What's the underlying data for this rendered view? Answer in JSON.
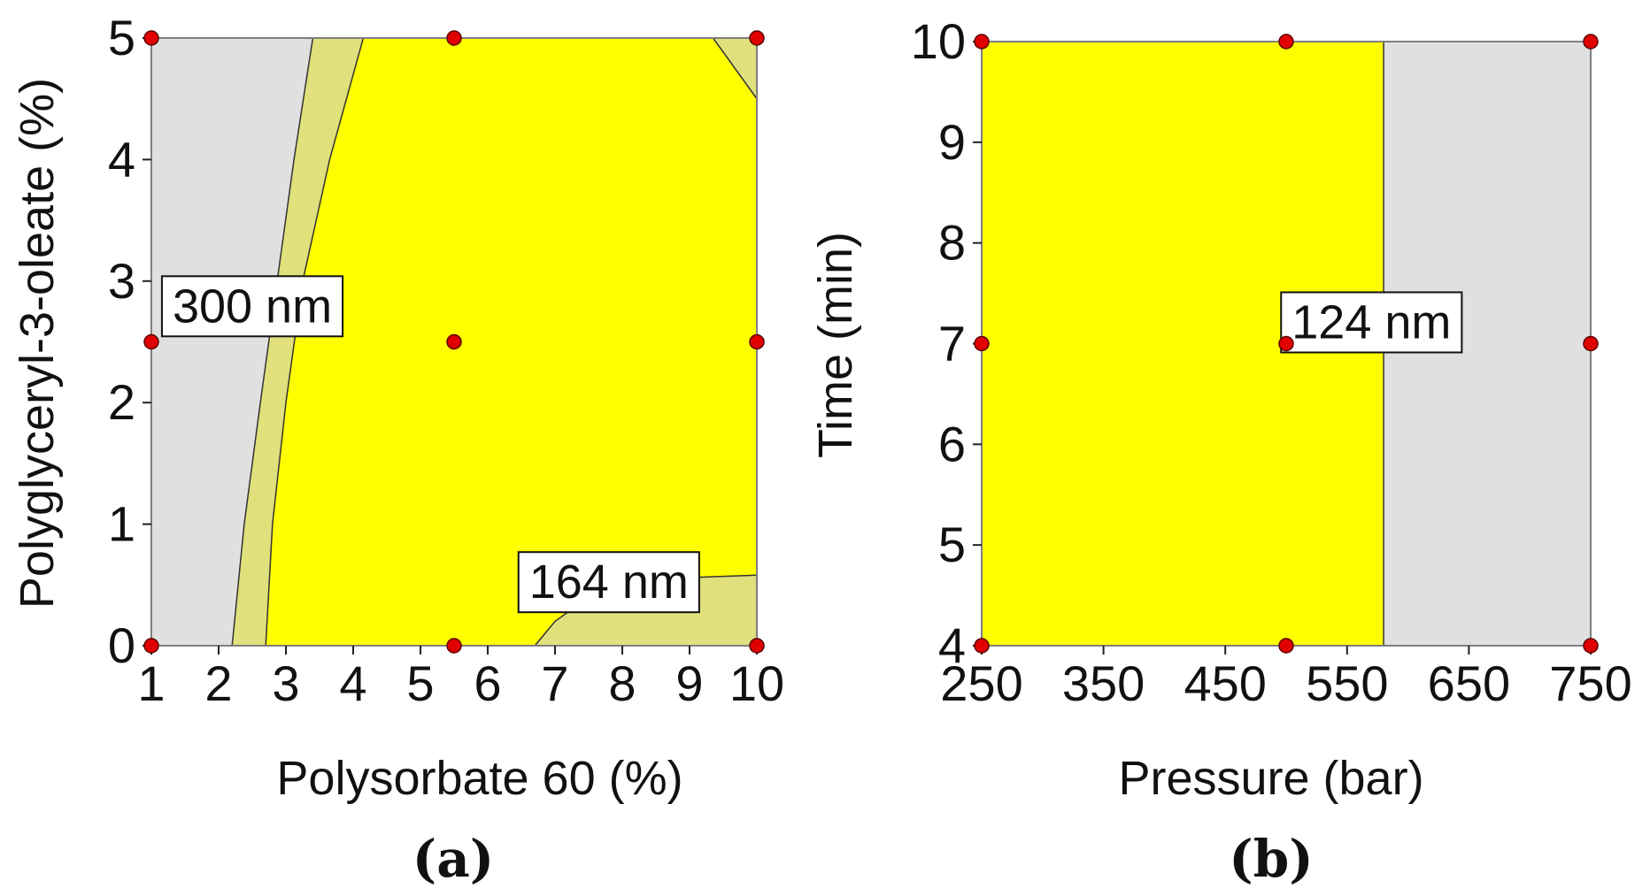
{
  "figure": {
    "colors": {
      "low_region": "#ffff00",
      "mid_region": "#e0e07c",
      "high_region": "#e0e0e0",
      "design_point": "#e00000",
      "frame": "#7f7f7f"
    }
  },
  "chart_data": [
    {
      "type": "contour",
      "panel": "(a)",
      "xlabel": "Polysorbate 60 (%)",
      "ylabel": "Polyglyceryl-3-oleate (%)",
      "xlim": [
        1,
        10
      ],
      "ylim": [
        0,
        5
      ],
      "xticks": [
        "1",
        "2",
        "3",
        "4",
        "5",
        "6",
        "7",
        "8",
        "9",
        "10"
      ],
      "yticks": [
        "0",
        "1",
        "2",
        "3",
        "4",
        "5"
      ],
      "grid": false,
      "contour_labels": [
        {
          "text": "300 nm",
          "x": 2.5,
          "y": 2.8
        },
        {
          "text": "164 nm",
          "x": 7.8,
          "y": 0.53
        }
      ],
      "regions": [
        {
          "fill": "high",
          "boundary_x_at_y": [
            [
              0,
              2.2
            ],
            [
              1,
              2.38
            ],
            [
              2,
              2.62
            ],
            [
              3,
              2.87
            ],
            [
              4,
              3.12
            ],
            [
              5,
              3.4
            ]
          ]
        },
        {
          "fill": "mid",
          "boundary_x_at_y": [
            [
              0,
              2.7
            ],
            [
              1,
              2.8
            ],
            [
              2,
              3.0
            ],
            [
              3,
              3.25
            ],
            [
              4,
              3.65
            ],
            [
              5,
              4.15
            ]
          ]
        },
        {
          "fill": "mid_corner_bottom_right",
          "boundary": [
            [
              6.7,
              0
            ],
            [
              7.0,
              0.2
            ],
            [
              7.5,
              0.4
            ],
            [
              8.5,
              0.55
            ],
            [
              10,
              0.58
            ]
          ]
        },
        {
          "fill": "mid_corner_top_right",
          "boundary": [
            [
              9.35,
              5
            ],
            [
              10,
              4.5
            ]
          ]
        }
      ],
      "design_points": [
        {
          "x": 1,
          "y": 0
        },
        {
          "x": 5.5,
          "y": 0
        },
        {
          "x": 10,
          "y": 0
        },
        {
          "x": 1,
          "y": 2.5
        },
        {
          "x": 5.5,
          "y": 2.5
        },
        {
          "x": 10,
          "y": 2.5
        },
        {
          "x": 1,
          "y": 5
        },
        {
          "x": 5.5,
          "y": 5
        },
        {
          "x": 10,
          "y": 5
        }
      ]
    },
    {
      "type": "contour",
      "panel": "(b)",
      "xlabel": "Pressure (bar)",
      "ylabel": "Time (min)",
      "xlim": [
        250,
        750
      ],
      "ylim": [
        4,
        10
      ],
      "xticks": [
        "250",
        "350",
        "450",
        "550",
        "650",
        "750"
      ],
      "yticks": [
        "4",
        "5",
        "6",
        "7",
        "8",
        "9",
        "10"
      ],
      "grid": false,
      "contour_labels": [
        {
          "text": "124 nm",
          "x": 570,
          "y": 7.22
        }
      ],
      "regions": [
        {
          "fill": "low",
          "x_range": [
            250,
            580
          ]
        },
        {
          "fill": "high",
          "x_range": [
            580,
            750
          ]
        }
      ],
      "design_points": [
        {
          "x": 250,
          "y": 4
        },
        {
          "x": 500,
          "y": 4
        },
        {
          "x": 750,
          "y": 4
        },
        {
          "x": 250,
          "y": 7
        },
        {
          "x": 500,
          "y": 7
        },
        {
          "x": 750,
          "y": 7
        },
        {
          "x": 250,
          "y": 10
        },
        {
          "x": 500,
          "y": 10
        },
        {
          "x": 750,
          "y": 10
        }
      ]
    }
  ]
}
